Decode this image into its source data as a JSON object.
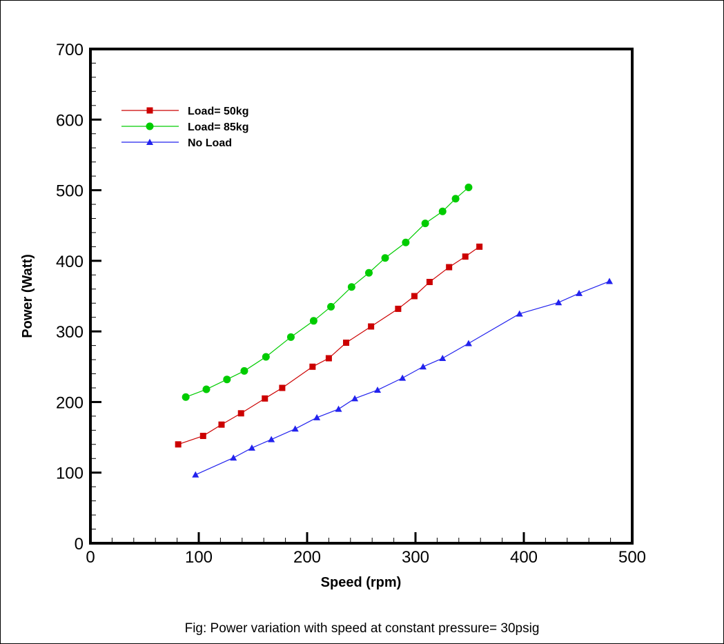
{
  "caption": "Fig: Power variation with speed at constant pressure= 30psig",
  "chart_data": {
    "type": "line",
    "title": "",
    "caption": "Fig: Power variation with speed at constant pressure= 30psig",
    "xlabel": "Speed (rpm)",
    "ylabel": "Power (Watt)",
    "xlim": [
      0,
      500
    ],
    "ylim": [
      0,
      700
    ],
    "xticks": [
      0,
      100,
      200,
      300,
      400,
      500
    ],
    "yticks": [
      0,
      100,
      200,
      300,
      400,
      500,
      600,
      700
    ],
    "x_minor_step": 20,
    "y_minor_step": 20,
    "grid": false,
    "legend_position": "upper-left inside plot",
    "series": [
      {
        "name": "Load= 50kg",
        "color": "#cc0000",
        "marker": "square",
        "x": [
          81,
          104,
          121,
          139,
          161,
          177,
          205,
          220,
          236,
          259,
          284,
          299,
          313,
          331,
          346,
          359
        ],
        "y": [
          140,
          152,
          168,
          184,
          205,
          220,
          250,
          262,
          284,
          307,
          332,
          350,
          370,
          391,
          406,
          420
        ]
      },
      {
        "name": "Load= 85kg",
        "color": "#00cc00",
        "marker": "circle",
        "x": [
          88,
          107,
          126,
          142,
          162,
          185,
          206,
          222,
          241,
          257,
          272,
          291,
          309,
          325,
          337,
          349
        ],
        "y": [
          207,
          218,
          232,
          244,
          264,
          292,
          315,
          335,
          363,
          383,
          404,
          426,
          453,
          470,
          488,
          504
        ]
      },
      {
        "name": "No Load",
        "color": "#2222ee",
        "marker": "triangle",
        "x": [
          97,
          132,
          149,
          167,
          189,
          209,
          229,
          244,
          265,
          288,
          307,
          325,
          349,
          396,
          432,
          451,
          479
        ],
        "y": [
          97,
          121,
          135,
          147,
          162,
          178,
          190,
          205,
          217,
          234,
          250,
          262,
          283,
          325,
          341,
          354,
          371
        ]
      }
    ]
  }
}
